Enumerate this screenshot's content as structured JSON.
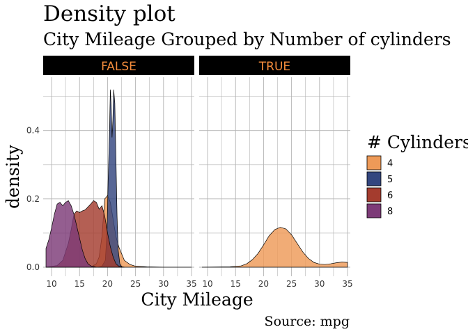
{
  "chart_data": {
    "type": "area",
    "title": "Density plot",
    "subtitle": "City Mileage Grouped by Number of cylinders",
    "caption": "Source: mpg",
    "xlabel": "City Mileage",
    "ylabel": "density",
    "xlim": [
      8.5,
      35.5
    ],
    "ylim": [
      0,
      0.54
    ],
    "x_ticks": [
      10,
      15,
      20,
      25,
      30,
      35
    ],
    "y_ticks": [
      0.0,
      0.2,
      0.4
    ],
    "y_tick_labels": [
      "0.0",
      "0.2",
      "0.4"
    ],
    "grid": true,
    "legend": {
      "title": "# Cylinders",
      "position": "right",
      "entries": [
        {
          "label": "4",
          "color": "#ee9a58"
        },
        {
          "label": "5",
          "color": "#33467f"
        },
        {
          "label": "6",
          "color": "#a43c2e"
        },
        {
          "label": "8",
          "color": "#7d3b78"
        }
      ]
    },
    "colors": {
      "strip_background": "#000000",
      "strip_text": "#f58d3c",
      "grid": "#b4b4b4",
      "outline": "#000000"
    },
    "facets": [
      {
        "label": "FALSE",
        "series": [
          {
            "name": "4",
            "points": [
              [
                17,
                0
              ],
              [
                18,
                0.01
              ],
              [
                18.5,
                0.03
              ],
              [
                19,
                0.09
              ],
              [
                19.5,
                0.2
              ],
              [
                20,
                0.21
              ],
              [
                20.5,
                0.19
              ],
              [
                21,
                0.14
              ],
              [
                21.5,
                0.09
              ],
              [
                22,
                0.06
              ],
              [
                22.5,
                0.04
              ],
              [
                23,
                0.02
              ],
              [
                24,
                0.008
              ],
              [
                25,
                0.003
              ],
              [
                27,
                0.001
              ],
              [
                30,
                0
              ],
              [
                35,
                0
              ]
            ]
          },
          {
            "name": "5",
            "points": [
              [
                18.3,
                0
              ],
              [
                19,
                0.003
              ],
              [
                19.6,
                0.02
              ],
              [
                19.9,
                0.1
              ],
              [
                20.1,
                0.25
              ],
              [
                20.35,
                0.4
              ],
              [
                20.5,
                0.52
              ],
              [
                20.65,
                0.47
              ],
              [
                20.8,
                0.38
              ],
              [
                20.95,
                0.43
              ],
              [
                21.1,
                0.52
              ],
              [
                21.3,
                0.48
              ],
              [
                21.5,
                0.32
              ],
              [
                21.7,
                0.15
              ],
              [
                21.9,
                0.05
              ],
              [
                22.2,
                0.01
              ],
              [
                22.6,
                0
              ]
            ]
          },
          {
            "name": "6",
            "points": [
              [
                9,
                0
              ],
              [
                11,
                0.005
              ],
              [
                12,
                0.02
              ],
              [
                13,
                0.07
              ],
              [
                13.5,
                0.11
              ],
              [
                14,
                0.155
              ],
              [
                14.5,
                0.165
              ],
              [
                15,
                0.16
              ],
              [
                15.5,
                0.165
              ],
              [
                16,
                0.168
              ],
              [
                17,
                0.185
              ],
              [
                17.5,
                0.195
              ],
              [
                18,
                0.19
              ],
              [
                18.5,
                0.17
              ],
              [
                19,
                0.18
              ],
              [
                19.5,
                0.15
              ],
              [
                20,
                0.1
              ],
              [
                20.5,
                0.06
              ],
              [
                21,
                0.03
              ],
              [
                21.5,
                0.01
              ],
              [
                22,
                0.003
              ],
              [
                23,
                0
              ]
            ]
          },
          {
            "name": "8",
            "points": [
              [
                9,
                0.055
              ],
              [
                9.5,
                0.08
              ],
              [
                10,
                0.115
              ],
              [
                10.5,
                0.155
              ],
              [
                11,
                0.185
              ],
              [
                11.5,
                0.19
              ],
              [
                12,
                0.18
              ],
              [
                12.5,
                0.19
              ],
              [
                13,
                0.195
              ],
              [
                13.5,
                0.18
              ],
              [
                14,
                0.155
              ],
              [
                14.5,
                0.12
              ],
              [
                15,
                0.085
              ],
              [
                15.5,
                0.05
              ],
              [
                16,
                0.025
              ],
              [
                16.5,
                0.01
              ],
              [
                17,
                0.004
              ],
              [
                18,
                0
              ]
            ]
          }
        ]
      },
      {
        "label": "TRUE",
        "series": [
          {
            "name": "4",
            "points": [
              [
                9,
                0
              ],
              [
                14,
                0.001
              ],
              [
                16,
                0.004
              ],
              [
                17,
                0.01
              ],
              [
                18,
                0.022
              ],
              [
                19,
                0.04
              ],
              [
                20,
                0.065
              ],
              [
                21,
                0.092
              ],
              [
                22,
                0.11
              ],
              [
                23,
                0.117
              ],
              [
                24,
                0.112
              ],
              [
                25,
                0.095
              ],
              [
                26,
                0.07
              ],
              [
                27,
                0.045
              ],
              [
                28,
                0.026
              ],
              [
                29,
                0.014
              ],
              [
                30,
                0.009
              ],
              [
                31,
                0.008
              ],
              [
                32,
                0.01
              ],
              [
                33,
                0.013
              ],
              [
                34,
                0.015
              ],
              [
                35,
                0.014
              ]
            ]
          }
        ]
      }
    ]
  }
}
